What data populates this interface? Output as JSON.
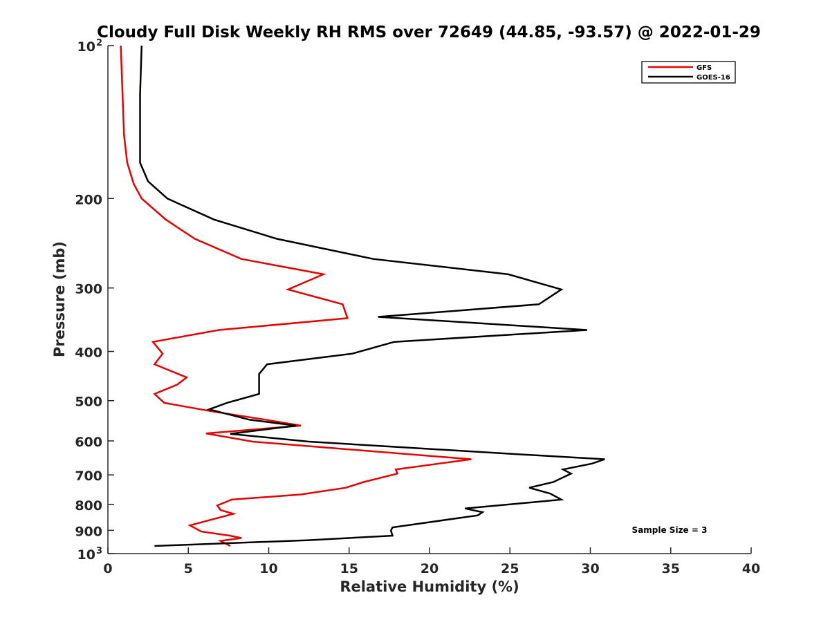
{
  "chart_data": {
    "type": "line",
    "title": "Cloudy Full Disk Weekly RH RMS over 72649 (44.85, -93.57) @ 2022-01-29",
    "xlabel": "Relative Humidity (%)",
    "ylabel": "Pressure (mb)",
    "xlim": [
      0,
      40
    ],
    "ylim": [
      100,
      1000
    ],
    "y_scale": "log",
    "y_reversed": true,
    "x_ticks": [
      "0",
      "5",
      "10",
      "15",
      "20",
      "25",
      "30",
      "35",
      "40"
    ],
    "y_ticks": [
      {
        "value": 100,
        "label": "10",
        "sup": "2"
      },
      {
        "value": 200,
        "label": "200",
        "sup": ""
      },
      {
        "value": 300,
        "label": "300",
        "sup": ""
      },
      {
        "value": 400,
        "label": "400",
        "sup": ""
      },
      {
        "value": 500,
        "label": "500",
        "sup": ""
      },
      {
        "value": 600,
        "label": "600",
        "sup": ""
      },
      {
        "value": 700,
        "label": "700",
        "sup": ""
      },
      {
        "value": 800,
        "label": "800",
        "sup": ""
      },
      {
        "value": 900,
        "label": "900",
        "sup": ""
      },
      {
        "value": 1000,
        "label": "10",
        "sup": "3"
      }
    ],
    "legend_position": "top-right",
    "annotation": "Sample Size = 3",
    "series": [
      {
        "name": "GFS",
        "color": "#e60000",
        "points": [
          [
            0.8,
            100
          ],
          [
            1.0,
            150
          ],
          [
            1.2,
            170
          ],
          [
            1.6,
            187
          ],
          [
            2.1,
            200
          ],
          [
            3.6,
            220
          ],
          [
            5.4,
            240
          ],
          [
            8.3,
            263
          ],
          [
            13.4,
            282
          ],
          [
            11.2,
            302
          ],
          [
            14.6,
            323
          ],
          [
            14.9,
            344
          ],
          [
            6.9,
            363
          ],
          [
            2.8,
            383
          ],
          [
            3.4,
            404
          ],
          [
            2.9,
            424
          ],
          [
            4.9,
            450
          ],
          [
            4.3,
            465
          ],
          [
            2.9,
            485
          ],
          [
            3.5,
            505
          ],
          [
            6.5,
            525
          ],
          [
            9.8,
            545
          ],
          [
            12.0,
            560
          ],
          [
            6.1,
            580
          ],
          [
            9.0,
            602
          ],
          [
            22.6,
            652
          ],
          [
            17.9,
            683
          ],
          [
            18.0,
            696
          ],
          [
            15.9,
            723
          ],
          [
            14.8,
            742
          ],
          [
            12.0,
            765
          ],
          [
            7.7,
            783
          ],
          [
            6.8,
            804
          ],
          [
            7.0,
            821
          ],
          [
            7.8,
            835
          ],
          [
            5.1,
            880
          ],
          [
            5.8,
            905
          ],
          [
            7.6,
            922
          ],
          [
            8.3,
            932
          ],
          [
            7.0,
            944
          ],
          [
            7.6,
            966
          ]
        ]
      },
      {
        "name": "GOES-16",
        "color": "#000000",
        "points": [
          [
            2.1,
            100
          ],
          [
            2.0,
            125
          ],
          [
            2.0,
            170
          ],
          [
            2.5,
            185
          ],
          [
            3.7,
            200
          ],
          [
            6.6,
            220
          ],
          [
            10.5,
            240
          ],
          [
            16.5,
            263
          ],
          [
            24.9,
            282
          ],
          [
            28.2,
            302
          ],
          [
            26.8,
            323
          ],
          [
            16.8,
            342
          ],
          [
            29.8,
            363
          ],
          [
            17.8,
            383
          ],
          [
            15.2,
            404
          ],
          [
            9.9,
            424
          ],
          [
            9.4,
            443
          ],
          [
            9.4,
            485
          ],
          [
            7.4,
            505
          ],
          [
            6.3,
            520
          ],
          [
            8.8,
            545
          ],
          [
            11.7,
            560
          ],
          [
            7.6,
            581
          ],
          [
            12.5,
            602
          ],
          [
            25.3,
            637
          ],
          [
            30.9,
            652
          ],
          [
            30.1,
            665
          ],
          [
            28.3,
            683
          ],
          [
            28.8,
            696
          ],
          [
            27.7,
            723
          ],
          [
            26.2,
            742
          ],
          [
            27.5,
            762
          ],
          [
            28.2,
            783
          ],
          [
            22.2,
            815
          ],
          [
            23.3,
            829
          ],
          [
            23.0,
            841
          ],
          [
            17.7,
            888
          ],
          [
            17.6,
            901
          ],
          [
            17.7,
            922
          ],
          [
            12.5,
            941
          ],
          [
            2.9,
            966
          ]
        ]
      }
    ]
  }
}
